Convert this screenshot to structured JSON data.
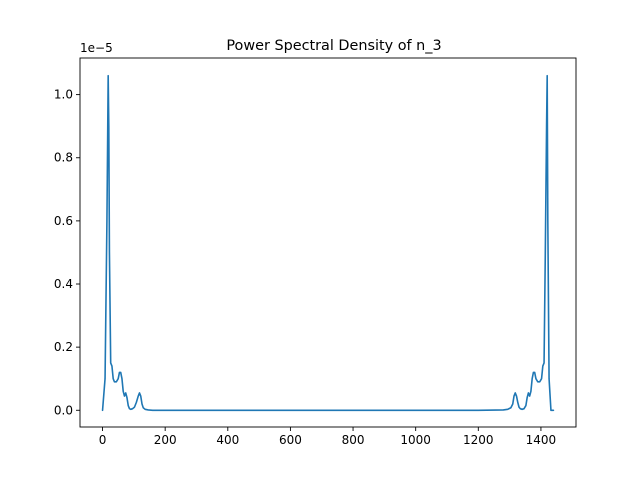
{
  "chart_data": {
    "type": "line",
    "title": "Power Spectral Density of n_3",
    "xlabel": "",
    "ylabel": "",
    "y_offset_label": "1e−5",
    "xlim": [
      -72,
      1512
    ],
    "ylim": [
      -0.053,
      1.116
    ],
    "grid": false,
    "x_ticks": [
      0,
      200,
      400,
      600,
      800,
      1000,
      1200,
      1400
    ],
    "x_tick_labels": [
      "0",
      "200",
      "400",
      "600",
      "800",
      "1000",
      "1200",
      "1400"
    ],
    "y_ticks": [
      0.0,
      0.2,
      0.4,
      0.6,
      0.8,
      1.0
    ],
    "y_tick_labels": [
      "0.0",
      "0.2",
      "0.4",
      "0.6",
      "0.8",
      "1.0"
    ],
    "series": [
      {
        "name": "",
        "color": "#1f77b4",
        "x": [
          0,
          8,
          14,
          18,
          20,
          22,
          26,
          30,
          34,
          38,
          44,
          50,
          54,
          58,
          62,
          66,
          70,
          74,
          78,
          82,
          86,
          90,
          96,
          102,
          108,
          114,
          118,
          122,
          126,
          130,
          136,
          146,
          160,
          200,
          400,
          600,
          800,
          1000,
          1200,
          1280,
          1294,
          1304,
          1310,
          1314,
          1318,
          1322,
          1326,
          1330,
          1334,
          1340,
          1346,
          1352,
          1356,
          1360,
          1364,
          1368,
          1372,
          1376,
          1380,
          1384,
          1390,
          1396,
          1402,
          1406,
          1410,
          1414,
          1418,
          1420,
          1422,
          1426,
          1432,
          1440
        ],
        "y": [
          0.0,
          0.1,
          0.6,
          1.06,
          0.9,
          0.5,
          0.15,
          0.14,
          0.1,
          0.09,
          0.09,
          0.1,
          0.12,
          0.12,
          0.1,
          0.06,
          0.045,
          0.055,
          0.04,
          0.015,
          0.005,
          0.003,
          0.005,
          0.01,
          0.025,
          0.045,
          0.055,
          0.045,
          0.02,
          0.008,
          0.003,
          0.001,
          0.0,
          0.0,
          0.0,
          0.0,
          0.0,
          0.0,
          0.0,
          0.001,
          0.003,
          0.008,
          0.02,
          0.045,
          0.055,
          0.045,
          0.025,
          0.01,
          0.005,
          0.003,
          0.005,
          0.015,
          0.04,
          0.055,
          0.045,
          0.06,
          0.1,
          0.12,
          0.12,
          0.1,
          0.09,
          0.09,
          0.1,
          0.14,
          0.15,
          0.5,
          0.9,
          1.06,
          0.6,
          0.1,
          0.0,
          0.0
        ]
      }
    ]
  }
}
